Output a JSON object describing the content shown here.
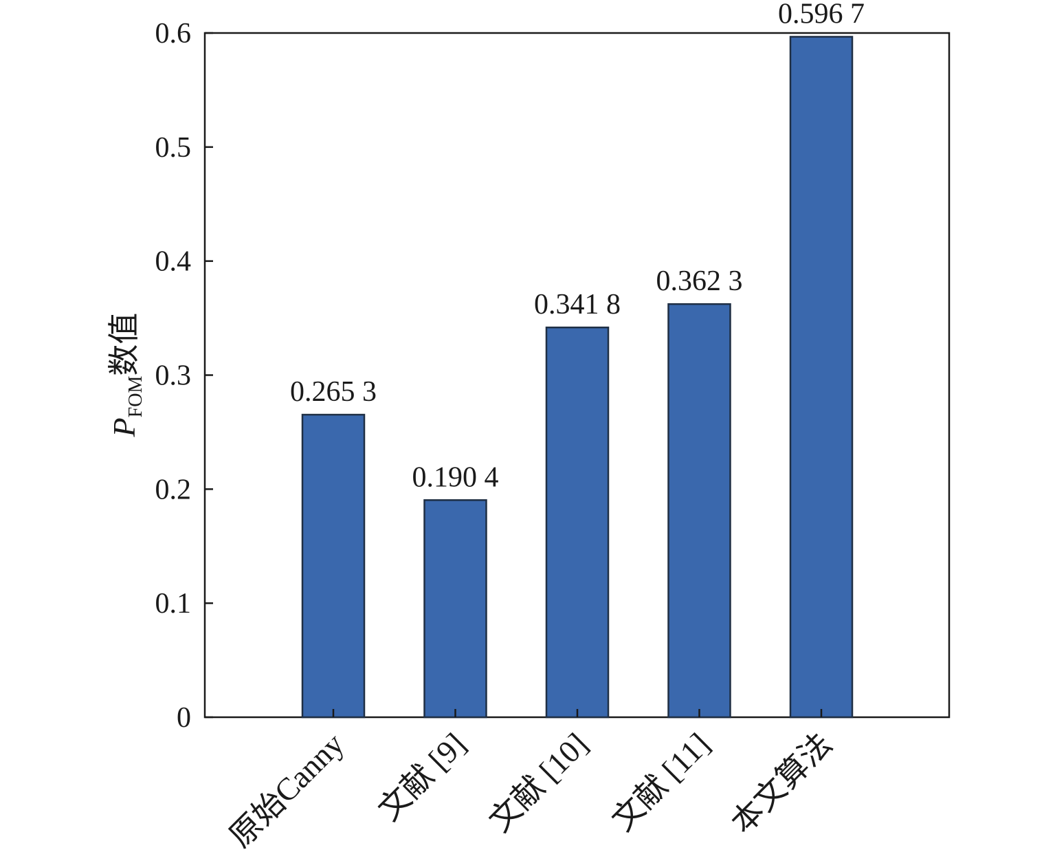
{
  "chart_data": {
    "type": "bar",
    "categories": [
      "原始Canny",
      "文献 [9]",
      "文献 [10]",
      "文献 [11]",
      "本文算法"
    ],
    "values": [
      0.2653,
      0.1904,
      0.3418,
      0.3623,
      0.5967
    ],
    "value_labels": [
      "0.265 3",
      "0.190 4",
      "0.341 8",
      "0.362 3",
      "0.596 7"
    ],
    "ylabel": {
      "main": "P",
      "subscript": "FOM",
      "suffix": "数值"
    },
    "xlabel": "",
    "title": "",
    "ylim": [
      0,
      0.6
    ],
    "yticks": [
      0,
      0.1,
      0.2,
      0.3,
      0.4,
      0.5,
      0.6
    ],
    "ytick_labels": [
      "0",
      "0.1",
      "0.2",
      "0.3",
      "0.4",
      "0.5",
      "0.6"
    ],
    "grid": false,
    "legend": "none",
    "colors": {
      "bar_fill": "#3a68ad",
      "bar_edge": "#1f2f44",
      "axis": "#1a1a1a"
    }
  }
}
